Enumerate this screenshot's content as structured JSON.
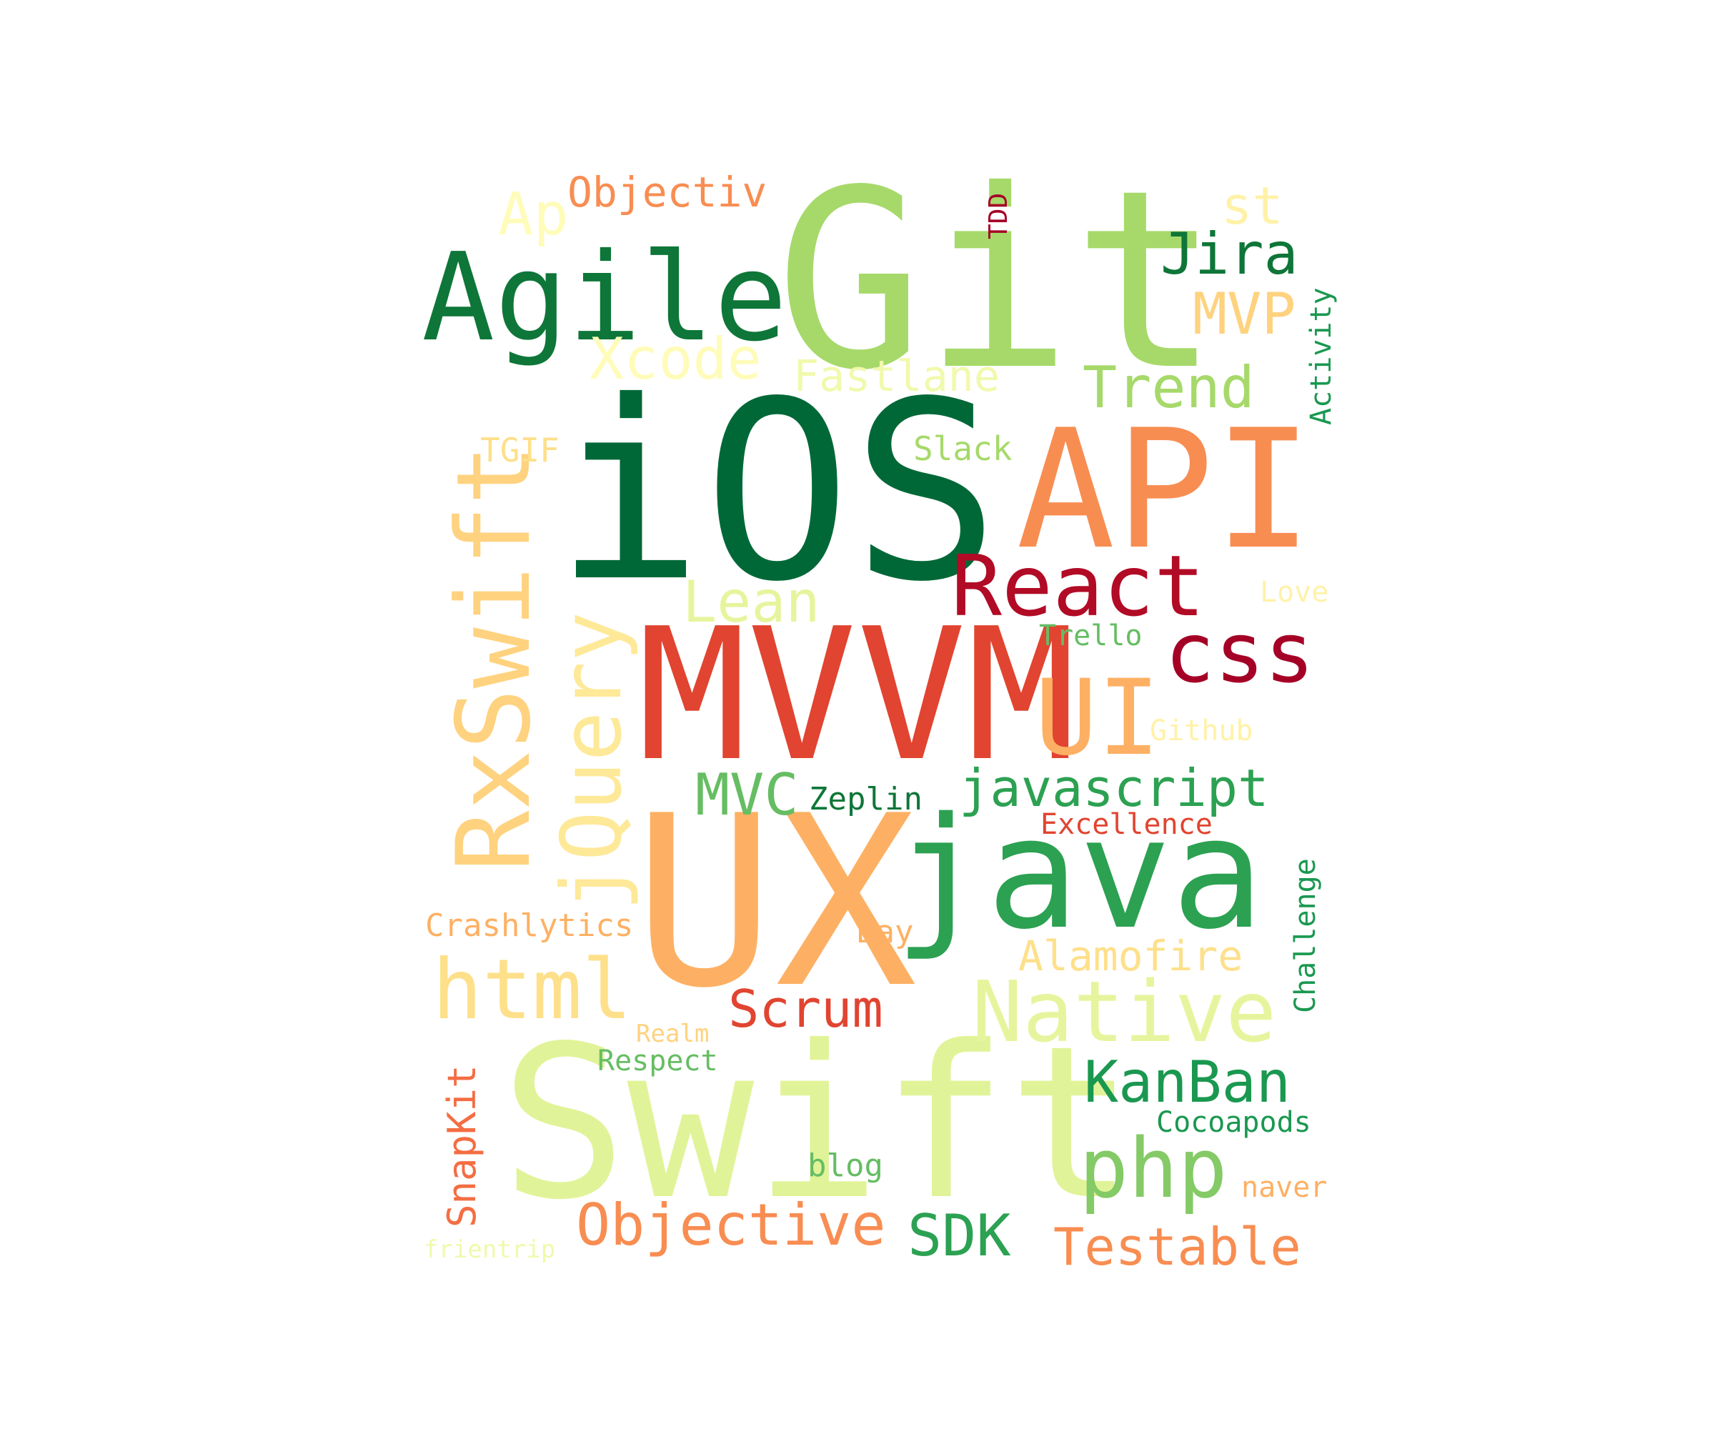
{
  "words": [
    {
      "text": "Git",
      "color": "#a6d96a"
    },
    {
      "text": "iOS",
      "color": "#006837"
    },
    {
      "text": "API",
      "color": "#f88d52"
    },
    {
      "text": "Agile",
      "color": "#0e7638"
    },
    {
      "text": "MVVM",
      "color": "#e14430"
    },
    {
      "text": "UX",
      "color": "#fdb063"
    },
    {
      "text": "java",
      "color": "#2ca152"
    },
    {
      "text": "Swift",
      "color": "#e1f398"
    },
    {
      "text": "RxSwift",
      "color": "#fed27f"
    },
    {
      "text": "jQuery",
      "color": "#fee999"
    },
    {
      "text": "React",
      "color": "#b10b26"
    },
    {
      "text": "css",
      "color": "#a50026"
    },
    {
      "text": "UI",
      "color": "#fdb063"
    },
    {
      "text": "Native",
      "color": "#e6f59d"
    },
    {
      "text": "html",
      "color": "#fee08b"
    },
    {
      "text": "php",
      "color": "#84ca66"
    },
    {
      "text": "Objectiv",
      "color": "#f88d52"
    },
    {
      "text": "Ap",
      "color": "#fffcba"
    },
    {
      "text": "TDD",
      "color": "#a50026"
    },
    {
      "text": "st",
      "color": "#fff2a8"
    },
    {
      "text": "Jira",
      "color": "#0e7638"
    },
    {
      "text": "MVP",
      "color": "#fed27f"
    },
    {
      "text": "Xcode",
      "color": "#fffcba"
    },
    {
      "text": "Fastlane",
      "color": "#f1f9ac"
    },
    {
      "text": "Trend",
      "color": "#a6d96a"
    },
    {
      "text": "Activity",
      "color": "#1a9850"
    },
    {
      "text": "TGIF",
      "color": "#fee08b"
    },
    {
      "text": "Slack",
      "color": "#a6d96a"
    },
    {
      "text": "Lean",
      "color": "#e6f59d"
    },
    {
      "text": "Love",
      "color": "#fff2a8"
    },
    {
      "text": "Trello",
      "color": "#66bd63"
    },
    {
      "text": "Github",
      "color": "#fff2a8"
    },
    {
      "text": "MVC",
      "color": "#66bd63"
    },
    {
      "text": "Zeplin",
      "color": "#0e7638"
    },
    {
      "text": "javascript",
      "color": "#2ca152"
    },
    {
      "text": "Excellence",
      "color": "#e14430"
    },
    {
      "text": "Challenge",
      "color": "#1a9850"
    },
    {
      "text": "Crashlytics",
      "color": "#fdb063"
    },
    {
      "text": "Day",
      "color": "#fdb063"
    },
    {
      "text": "Alamofire",
      "color": "#fee08b"
    },
    {
      "text": "Scrum",
      "color": "#e14430"
    },
    {
      "text": "Realm",
      "color": "#fed27f"
    },
    {
      "text": "Respect",
      "color": "#66bd63"
    },
    {
      "text": "SnapKit",
      "color": "#f46d43"
    },
    {
      "text": "KanBan",
      "color": "#1a9850"
    },
    {
      "text": "Cocoapods",
      "color": "#1a9850"
    },
    {
      "text": "blog",
      "color": "#66bd63"
    },
    {
      "text": "naver",
      "color": "#fdb063"
    },
    {
      "text": "frientrip",
      "color": "#f1f9ac"
    },
    {
      "text": "Objective",
      "color": "#f88d52"
    },
    {
      "text": "SDK",
      "color": "#2ca152"
    },
    {
      "text": "Testable",
      "color": "#f88d52"
    }
  ]
}
